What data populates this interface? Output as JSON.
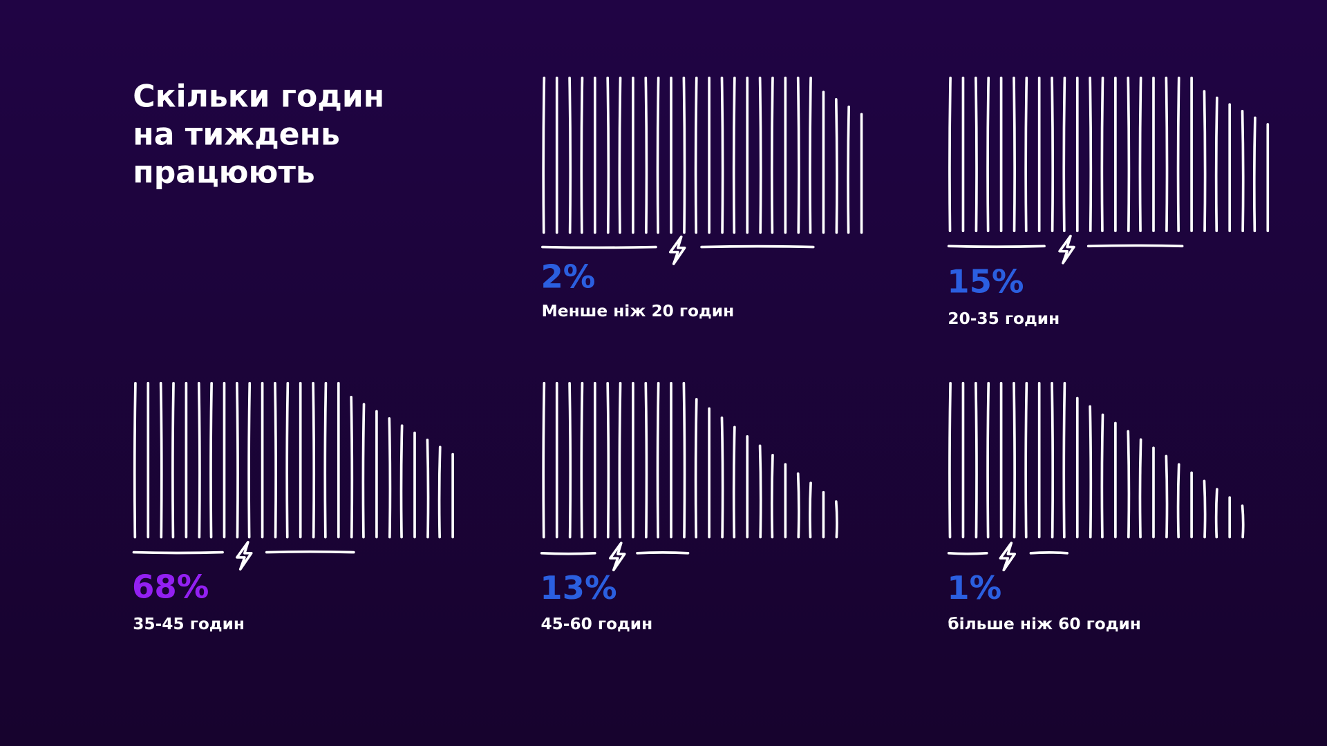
{
  "title": [
    "Скільки годин",
    "на тиждень",
    "працюють"
  ],
  "items": [
    {
      "percent": "2%",
      "label": "Менше ніж 20 годин",
      "color": "#2b5fe0"
    },
    {
      "percent": "15%",
      "label": "20-35 годин",
      "color": "#2b5fe0"
    },
    {
      "percent": "68%",
      "label": "35-45 годин",
      "color": "#9320f2"
    },
    {
      "percent": "13%",
      "label": "45-60 годин",
      "color": "#2b5fe0"
    },
    {
      "percent": "1%",
      "label": "більше ніж 60 годин",
      "color": "#2b5fe0"
    }
  ]
}
